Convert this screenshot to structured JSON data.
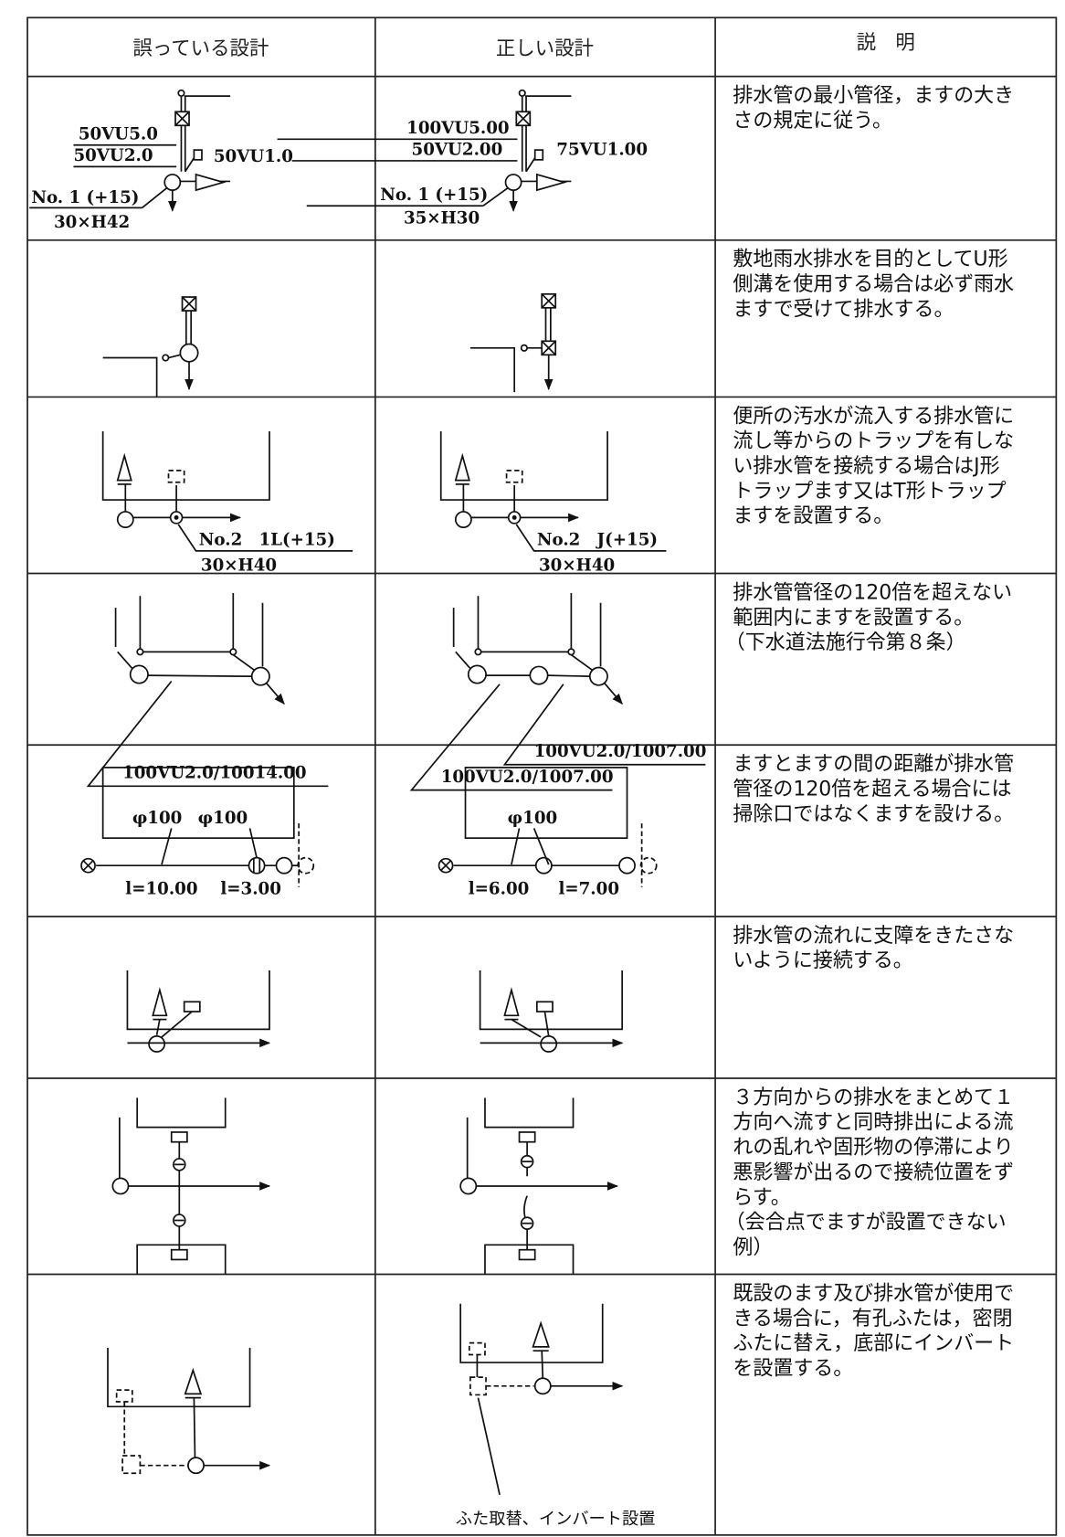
{
  "table": {
    "header": [
      "誤っている設計",
      "正しい設計",
      "説　明"
    ],
    "rows": [
      {
        "wrong": {
          "labels": [
            "50VU5.0",
            "50VU2.0",
            "50VU1.0",
            "No. 1 (+15)",
            "30×H42"
          ]
        },
        "correct": {
          "labels": [
            "100VU5.00",
            "50VU2.00",
            "75VU1.00",
            "No. 1 (+15)",
            "35×H30"
          ]
        },
        "note": [
          "排水管の最小管径，ますの大き",
          "さの規定に従う。"
        ]
      },
      {
        "note": [
          "敷地雨水排水を目的としてU形",
          "側溝を使用する場合は必ず雨水",
          "ますで受けて排水する。"
        ]
      },
      {
        "wrong": {
          "labels": [
            "No.2　1L(+15)",
            "30×H40"
          ]
        },
        "correct": {
          "labels": [
            "No.2　J(+15)",
            "30×H40"
          ]
        },
        "note": [
          "便所の汚水が流入する排水管に",
          "流し等からのトラップを有しな",
          "い排水管を接続する場合はJ形",
          "トラップます又はT形トラップ",
          "ますを設置する。"
        ]
      },
      {
        "wrong": {
          "labels": [
            "100VU2.0/10014.00"
          ]
        },
        "correct": {
          "labels": [
            "100VU2.0/1007.00",
            "100VU2.0/1007.00"
          ]
        },
        "note": [
          "排水管管径の120倍を超えない",
          "範囲内にますを設置する。",
          "（下水道法施行令第８条）"
        ]
      },
      {
        "wrong": {
          "labels": [
            "φ100",
            "φ100",
            "l=10.00",
            "l=3.00"
          ]
        },
        "correct": {
          "labels": [
            "φ100",
            "l=6.00",
            "l=7.00"
          ]
        },
        "note": [
          "ますとますの間の距離が排水管",
          "管径の120倍を超える場合には",
          "掃除口ではなくますを設ける。"
        ]
      },
      {
        "note": [
          "排水管の流れに支障をきたさな",
          "いように接続する。"
        ]
      },
      {
        "note": [
          "３方向からの排水をまとめて１",
          "方向へ流すと同時排出による流",
          "れの乱れや固形物の停滞により",
          "悪影響が出るので接続位置をず",
          "らす。",
          "（会合点でますが設置できない",
          "例）"
        ]
      },
      {
        "correct": {
          "labels": [
            "ふた取替、インバート設置"
          ]
        },
        "note": [
          "既設のます及び排水管が使用で",
          "きる場合に，有孔ふたは，密閉",
          "ふたに替え，底部にインバート",
          "を設置する。"
        ]
      }
    ]
  }
}
